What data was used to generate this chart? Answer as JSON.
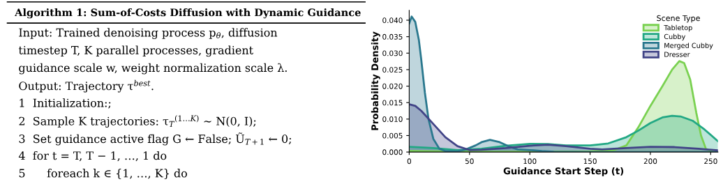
{
  "chart_data": [
    {
      "type": "other",
      "title": "Algorithm 1: Sum-of-Costs Diffusion with Dynamic Guidance",
      "annotations": [
        "Input: Trained denoising process p$_{θ}$, diffusion",
        "timestep T, K parallel processes, gradient",
        "guidance scale w, weight normalization scale λ.",
        "Output: Trajectory τ$^{best}$.",
        "1  Initialization:;",
        "2  Sample K trajectories: τ$_{T}$$^{(1…K)}$ ∼ N(0, I);",
        "3  Set guidance active flag G ← False; Ũ$_{T+1}$ ← 0;",
        "4  for t = T, T − 1, …, 1 do",
        "5      foreach k ∈ {1, …, K} do"
      ]
    },
    {
      "type": "area",
      "xlabel": "Guidance Start Step (t)",
      "ylabel": "Probability Density",
      "legend_title": "Scene Type",
      "legend": "top right",
      "xlim": [
        0,
        256
      ],
      "ylim": [
        0,
        0.043
      ],
      "xticks": [
        0,
        50,
        100,
        150,
        200,
        250
      ],
      "yticks": [
        {
          "value": 0,
          "label": "0.000"
        },
        0.005,
        {
          "value": 0.01,
          "label": "0.010"
        },
        0.015,
        {
          "value": 0.02,
          "label": "0.020"
        },
        0.025,
        {
          "value": 0.03,
          "label": "0.030"
        },
        0.035,
        {
          "value": 0.04,
          "label": "0.040"
        }
      ],
      "series": [
        {
          "name": "Tabletop",
          "color": "#7ad151",
          "x": [
            0,
            50,
            100,
            150,
            170,
            180,
            190,
            200,
            210,
            218,
            224,
            228,
            233,
            238,
            242,
            246,
            250,
            256
          ],
          "values": [
            0.0003,
            0.0001,
            0.0001,
            0.0002,
            0.0006,
            0.002,
            0.0075,
            0.014,
            0.02,
            0.025,
            0.0276,
            0.027,
            0.022,
            0.012,
            0.005,
            0.001,
            0.0002,
            0
          ]
        },
        {
          "name": "Cubby",
          "color": "#22a884",
          "x": [
            0,
            20,
            40,
            60,
            80,
            100,
            115,
            130,
            150,
            165,
            180,
            190,
            200,
            210,
            218,
            225,
            235,
            245,
            256
          ],
          "values": [
            0.0016,
            0.0012,
            0.0006,
            0.001,
            0.0019,
            0.0025,
            0.0024,
            0.002,
            0.002,
            0.0026,
            0.0045,
            0.0065,
            0.0088,
            0.0105,
            0.011,
            0.0108,
            0.0095,
            0.0068,
            0.0033
          ]
        },
        {
          "name": "Merged Cubby",
          "color": "#2a788e",
          "x": [
            0,
            2,
            5,
            8,
            10,
            13,
            16,
            20,
            25,
            30,
            40,
            47,
            55,
            60,
            67,
            75,
            82,
            90,
            100,
            110,
            120,
            150,
            200,
            256
          ],
          "values": [
            0.039,
            0.0411,
            0.0395,
            0.034,
            0.028,
            0.018,
            0.01,
            0.004,
            0.001,
            0.0003,
            0.0002,
            0.0008,
            0.002,
            0.003,
            0.0037,
            0.003,
            0.0018,
            0.0008,
            0.0006,
            0.0003,
            0.0001,
            0,
            0,
            0
          ]
        },
        {
          "name": "Dresser",
          "color": "#414487",
          "x": [
            0,
            5,
            10,
            20,
            30,
            40,
            50,
            60,
            80,
            100,
            115,
            130,
            150,
            160,
            180,
            200,
            220,
            240,
            256
          ],
          "values": [
            0.0145,
            0.014,
            0.0125,
            0.0085,
            0.0045,
            0.0018,
            0.0006,
            0.0007,
            0.0012,
            0.0019,
            0.0022,
            0.0018,
            0.001,
            0.0008,
            0.0012,
            0.0016,
            0.0015,
            0.001,
            0.0005
          ]
        }
      ]
    }
  ]
}
